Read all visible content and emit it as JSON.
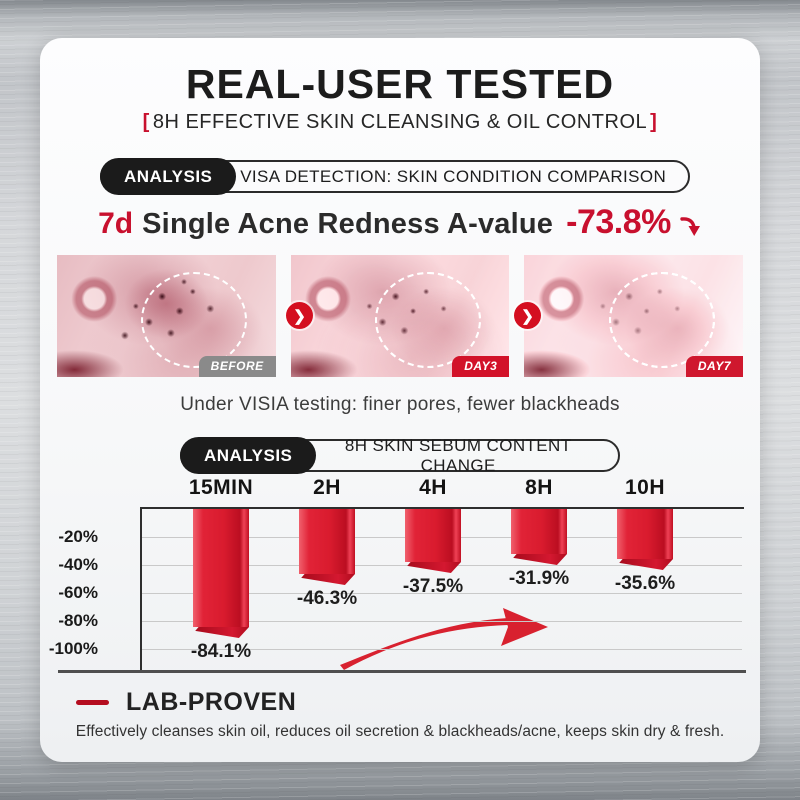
{
  "colors": {
    "accent_red": "#c8102e",
    "bar_red": "#d91b2e",
    "pill_black": "#1b1b1b",
    "badge_gray": "#8a8a8a",
    "badge_red": "#cf0f26"
  },
  "header": {
    "title": "REAL-USER TESTED",
    "bracket_open": "[",
    "subtitle": "8H EFFECTIVE SKIN CLEANSING & OIL CONTROL",
    "bracket_close": "]"
  },
  "visia_section": {
    "badge": "ANALYSIS",
    "pill": "VISA DETECTION: SKIN CONDITION COMPARISON",
    "headline": {
      "prefix": "7d",
      "text": "Single Acne Redness A-value",
      "value": "-73.8%"
    },
    "photos": [
      {
        "label": "BEFORE"
      },
      {
        "label": "DAY3"
      },
      {
        "label": "DAY7"
      }
    ],
    "step_arrow_glyph": "❯",
    "caption": "Under VISIA testing: finer pores, fewer blackheads"
  },
  "sebum_section": {
    "badge": "ANALYSIS",
    "pill": "8H SKIN SEBUM CONTENT CHANGE"
  },
  "chart_data": {
    "type": "bar",
    "title": "8H SKIN SEBUM CONTENT CHANGE",
    "categories": [
      "15MIN",
      "2H",
      "4H",
      "8H",
      "10H"
    ],
    "values": [
      -84.1,
      -46.3,
      -37.5,
      -31.9,
      -35.6
    ],
    "value_labels": [
      "-84.1%",
      "-46.3%",
      "-37.5%",
      "-31.9%",
      "-35.6%"
    ],
    "y_ticks": [
      {
        "label": "-20%",
        "value": -20
      },
      {
        "label": "-40%",
        "value": -40
      },
      {
        "label": "-60%",
        "value": -60
      },
      {
        "label": "-80%",
        "value": -80
      },
      {
        "label": "-100%",
        "value": -100
      }
    ],
    "ylim": [
      0,
      -100
    ],
    "grid": true,
    "legend": "none",
    "bars_hang_from_top_axis": true,
    "annotation": "upward red swoosh arrow"
  },
  "footer": {
    "heading": "LAB-PROVEN",
    "description": "Effectively cleanses skin oil, reduces oil secretion & blackheads/acne, keeps skin dry & fresh."
  }
}
